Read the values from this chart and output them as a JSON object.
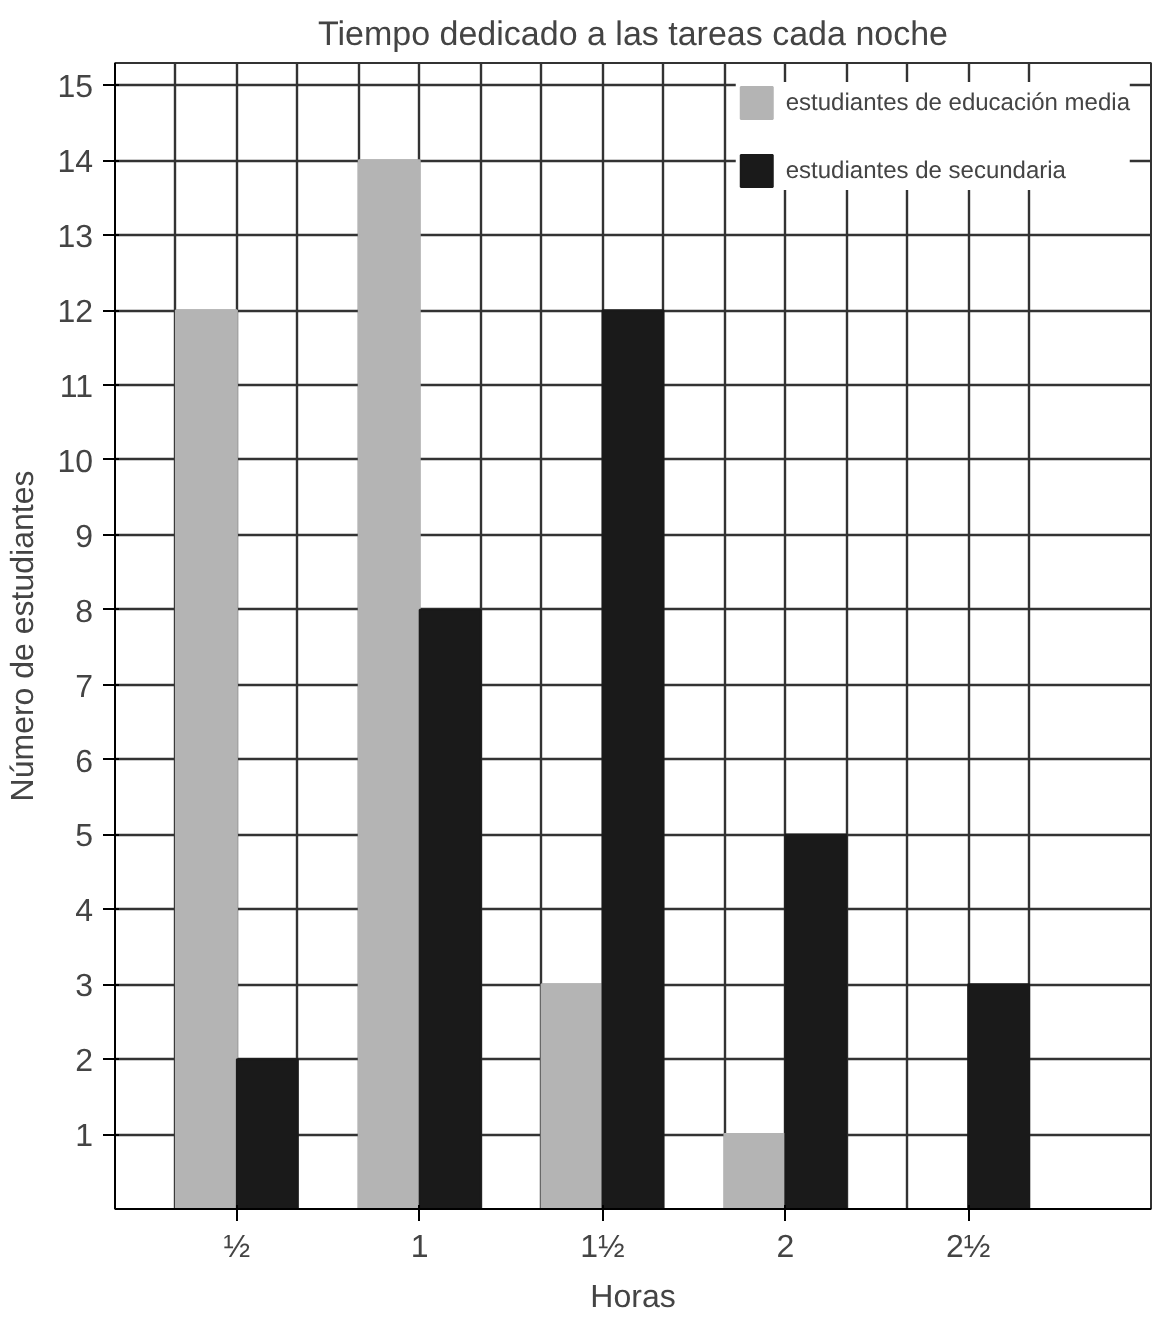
{
  "chart_data": {
    "type": "bar",
    "title": "Tiempo dedicado a las tareas cada noche",
    "xlabel": "Horas",
    "ylabel": "Número de estudiantes",
    "categories": [
      "½",
      "1",
      "1½",
      "2",
      "2½"
    ],
    "series": [
      {
        "name": "estudiantes de educación media",
        "color": "#b4b4b4",
        "values": [
          12,
          14,
          3,
          1,
          0
        ]
      },
      {
        "name": "estudiantes de secundaria",
        "color": "#1a1a1a",
        "values": [
          2,
          8,
          12,
          5,
          3
        ]
      }
    ],
    "ylim": [
      0,
      15.3
    ],
    "yticks": [
      1,
      2,
      3,
      4,
      5,
      6,
      7,
      8,
      9,
      10,
      11,
      12,
      13,
      14,
      15
    ],
    "grid": true,
    "legend": "top right"
  }
}
